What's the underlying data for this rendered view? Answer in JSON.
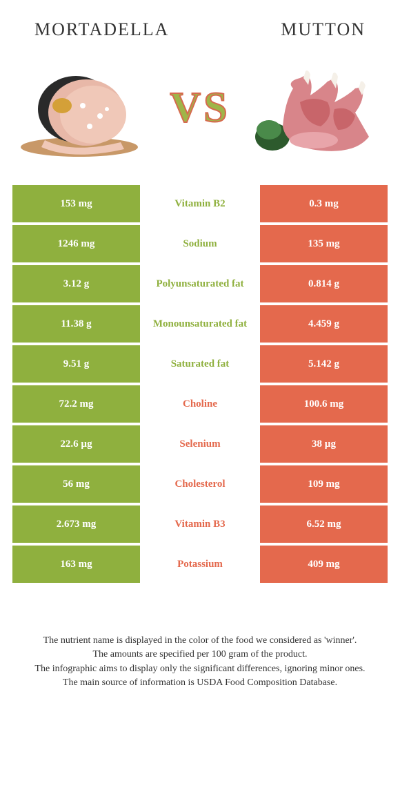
{
  "colors": {
    "green": "#8fb03e",
    "orange": "#e4694d",
    "vs_fill": "#9fb548",
    "vs_stroke": "#d66a4e"
  },
  "header": {
    "left": "Mortadella",
    "right": "Mutton"
  },
  "vs_text": "VS",
  "rows": [
    {
      "left": "153 mg",
      "mid": "Vitamin B2",
      "right": "0.3 mg",
      "winner": "left"
    },
    {
      "left": "1246 mg",
      "mid": "Sodium",
      "right": "135 mg",
      "winner": "left"
    },
    {
      "left": "3.12 g",
      "mid": "Polyunsaturated fat",
      "right": "0.814 g",
      "winner": "left"
    },
    {
      "left": "11.38 g",
      "mid": "Monounsaturated fat",
      "right": "4.459 g",
      "winner": "left"
    },
    {
      "left": "9.51 g",
      "mid": "Saturated fat",
      "right": "5.142 g",
      "winner": "left"
    },
    {
      "left": "72.2 mg",
      "mid": "Choline",
      "right": "100.6 mg",
      "winner": "right"
    },
    {
      "left": "22.6 µg",
      "mid": "Selenium",
      "right": "38 µg",
      "winner": "right"
    },
    {
      "left": "56 mg",
      "mid": "Cholesterol",
      "right": "109 mg",
      "winner": "right"
    },
    {
      "left": "2.673 mg",
      "mid": "Vitamin B3",
      "right": "6.52 mg",
      "winner": "right"
    },
    {
      "left": "163 mg",
      "mid": "Potassium",
      "right": "409 mg",
      "winner": "right"
    }
  ],
  "footer": {
    "line1": "The nutrient name is displayed in the color of the food we considered as 'winner'.",
    "line2": "The amounts are specified per 100 gram of the product.",
    "line3": "The infographic aims to display only the significant differences, ignoring minor ones.",
    "line4": "The main source of information is USDA Food Composition Database."
  }
}
